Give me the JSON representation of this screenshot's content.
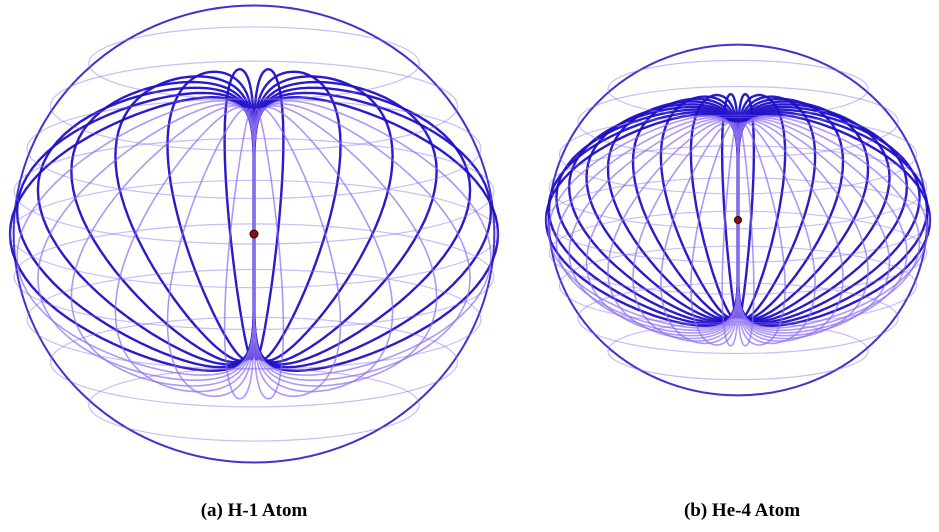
{
  "panels": [
    {
      "caption": "(a) H-1 Atom",
      "loop_count": 26,
      "colors": {
        "front": "#1e0fc8",
        "back": "#8a6cf0",
        "nucleus": "#8a1010"
      }
    },
    {
      "caption": "(b) He-4 Atom",
      "loop_count": 38,
      "colors": {
        "front": "#1e0fc8",
        "back": "#8a6cf0",
        "nucleus": "#8a1010"
      }
    }
  ]
}
